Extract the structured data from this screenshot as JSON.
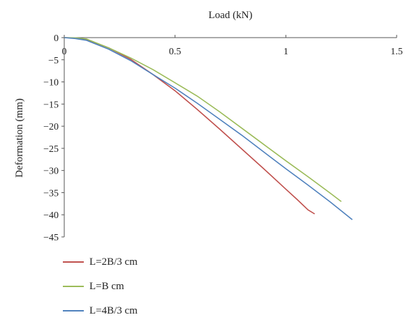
{
  "chart_data": {
    "type": "line",
    "xlabel": "Load (kN)",
    "ylabel": "Deformation (mm)",
    "xlim": [
      0,
      1.5
    ],
    "ylim": [
      -45,
      0
    ],
    "x_ticks": [
      "0",
      "0.5",
      "1",
      "1.5"
    ],
    "y_ticks": [
      "0",
      "−5",
      "−10",
      "−15",
      "−20",
      "−25",
      "−30",
      "−35",
      "−40",
      "−45"
    ],
    "x_axis_position": "top",
    "grid": false,
    "legend_position": "bottom-left",
    "series": [
      {
        "name": "L=2B/3 cm",
        "color": "#c0504d",
        "points": [
          [
            0,
            0
          ],
          [
            0.05,
            -0.1
          ],
          [
            0.1,
            -0.4
          ],
          [
            0.2,
            -2.3
          ],
          [
            0.3,
            -4.9
          ],
          [
            0.4,
            -8.3
          ],
          [
            0.5,
            -12.0
          ],
          [
            0.6,
            -16.2
          ],
          [
            0.7,
            -20.6
          ],
          [
            0.8,
            -25.1
          ],
          [
            0.9,
            -29.6
          ],
          [
            1.0,
            -34.2
          ],
          [
            1.05,
            -36.5
          ],
          [
            1.1,
            -38.9
          ],
          [
            1.13,
            -39.8
          ]
        ]
      },
      {
        "name": "L=B cm",
        "color": "#9bbb59",
        "points": [
          [
            0,
            0
          ],
          [
            0.05,
            -0.05
          ],
          [
            0.1,
            -0.3
          ],
          [
            0.2,
            -2.3
          ],
          [
            0.3,
            -4.6
          ],
          [
            0.4,
            -7.2
          ],
          [
            0.5,
            -10.2
          ],
          [
            0.6,
            -13.2
          ],
          [
            0.7,
            -16.7
          ],
          [
            0.8,
            -20.4
          ],
          [
            0.9,
            -24.1
          ],
          [
            1.0,
            -27.8
          ],
          [
            1.1,
            -31.4
          ],
          [
            1.2,
            -35.1
          ],
          [
            1.25,
            -37.0
          ]
        ]
      },
      {
        "name": "L=4B/3 cm",
        "color": "#4f81bd",
        "points": [
          [
            0,
            0
          ],
          [
            0.05,
            -0.2
          ],
          [
            0.1,
            -0.6
          ],
          [
            0.2,
            -2.6
          ],
          [
            0.3,
            -5.2
          ],
          [
            0.4,
            -8.3
          ],
          [
            0.5,
            -11.4
          ],
          [
            0.6,
            -14.8
          ],
          [
            0.7,
            -18.4
          ],
          [
            0.8,
            -22.0
          ],
          [
            0.9,
            -25.8
          ],
          [
            1.0,
            -29.6
          ],
          [
            1.1,
            -33.3
          ],
          [
            1.2,
            -37.1
          ],
          [
            1.3,
            -41.1
          ]
        ]
      }
    ]
  }
}
